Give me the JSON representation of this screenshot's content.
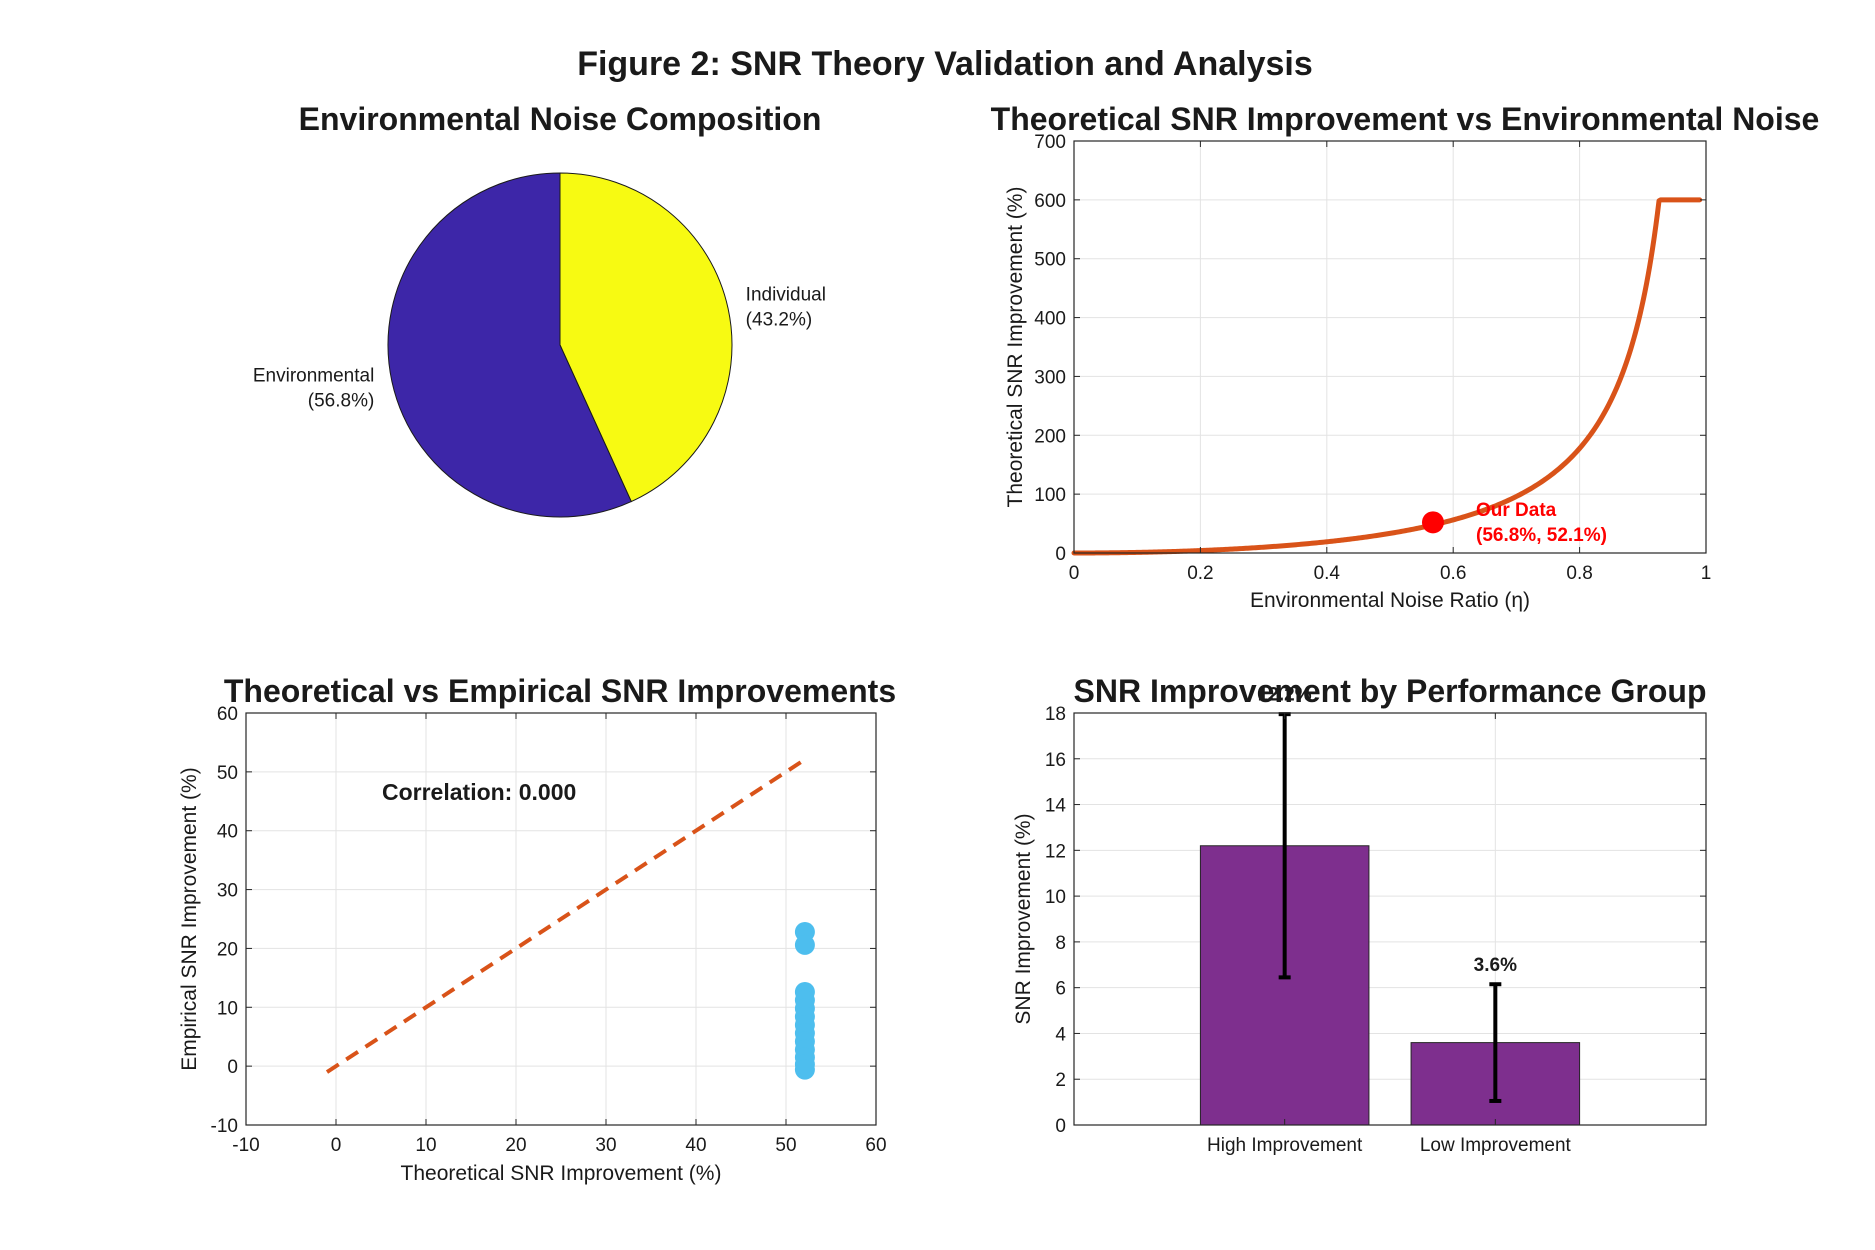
{
  "figure": {
    "title": "Figure 2: SNR Theory Validation and Analysis"
  },
  "chart_data": [
    {
      "type": "pie",
      "title": "Environmental Noise Composition",
      "slices": [
        {
          "label": "Individual",
          "pct_label": "(43.2%)",
          "value": 43.2,
          "color": "#f7fa12"
        },
        {
          "label": "Environmental",
          "pct_label": "(56.8%)",
          "value": 56.8,
          "color": "#3d26a8"
        }
      ]
    },
    {
      "type": "line",
      "title": "Theoretical SNR Improvement vs Environmental Noise",
      "xlabel": "Environmental Noise Ratio (η)",
      "ylabel": "Theoretical SNR Improvement (%)",
      "xlim": [
        0,
        1
      ],
      "ylim": [
        0,
        700
      ],
      "xticks": [
        0,
        0.2,
        0.4,
        0.6,
        0.8,
        1
      ],
      "xtick_labels": [
        "0",
        "0.2",
        "0.4",
        "0.6",
        "0.8",
        "1"
      ],
      "yticks": [
        0,
        100,
        200,
        300,
        400,
        500,
        600,
        700
      ],
      "grid": true,
      "line_color": "#d95319",
      "curve": {
        "x_max": 0.99,
        "y_max": 600
      },
      "point": {
        "x": 0.568,
        "y": 52.1,
        "color": "#ff0000"
      },
      "annotation": {
        "line1": "Our Data",
        "line2": "(56.8%, 52.1%)"
      }
    },
    {
      "type": "scatter",
      "title": "Theoretical vs Empirical SNR Improvements",
      "xlabel": "Theoretical SNR Improvement (%)",
      "ylabel": "Empirical SNR Improvement (%)",
      "xlim": [
        -10,
        60
      ],
      "ylim": [
        -10,
        60
      ],
      "xticks": [
        -10,
        0,
        10,
        20,
        30,
        40,
        50,
        60
      ],
      "yticks": [
        -10,
        0,
        10,
        20,
        30,
        40,
        50,
        60
      ],
      "grid": true,
      "reference_line": {
        "x": [
          -1,
          52.1
        ],
        "y": [
          -1,
          52.1
        ],
        "color": "#d95319",
        "style": "dashed"
      },
      "point_color": "#4dbeee",
      "points": [
        [
          52.1,
          22.8
        ],
        [
          52.1,
          20.6
        ],
        [
          52.1,
          12.6
        ],
        [
          52.1,
          11.2
        ],
        [
          52.1,
          9.8
        ],
        [
          52.1,
          8.4
        ],
        [
          52.1,
          7.0
        ],
        [
          52.1,
          5.6
        ],
        [
          52.1,
          4.2
        ],
        [
          52.1,
          2.8
        ],
        [
          52.1,
          1.5
        ],
        [
          52.1,
          0.3
        ],
        [
          52.1,
          -0.6
        ]
      ],
      "annotation": "Correlation: 0.000"
    },
    {
      "type": "bar",
      "title": "SNR Improvement by Performance Group",
      "ylabel": "SNR Improvement (%)",
      "categories": [
        "High Improvement",
        "Low Improvement"
      ],
      "values": [
        12.2,
        3.6
      ],
      "errors": [
        5.75,
        2.55
      ],
      "value_labels": [
        "12.2%",
        "3.6%"
      ],
      "xlim": [
        0,
        3
      ],
      "ylim": [
        0,
        18
      ],
      "yticks": [
        0,
        2,
        4,
        6,
        8,
        10,
        12,
        14,
        16,
        18
      ],
      "grid": true,
      "bar_color": "#7e2f8e"
    }
  ]
}
